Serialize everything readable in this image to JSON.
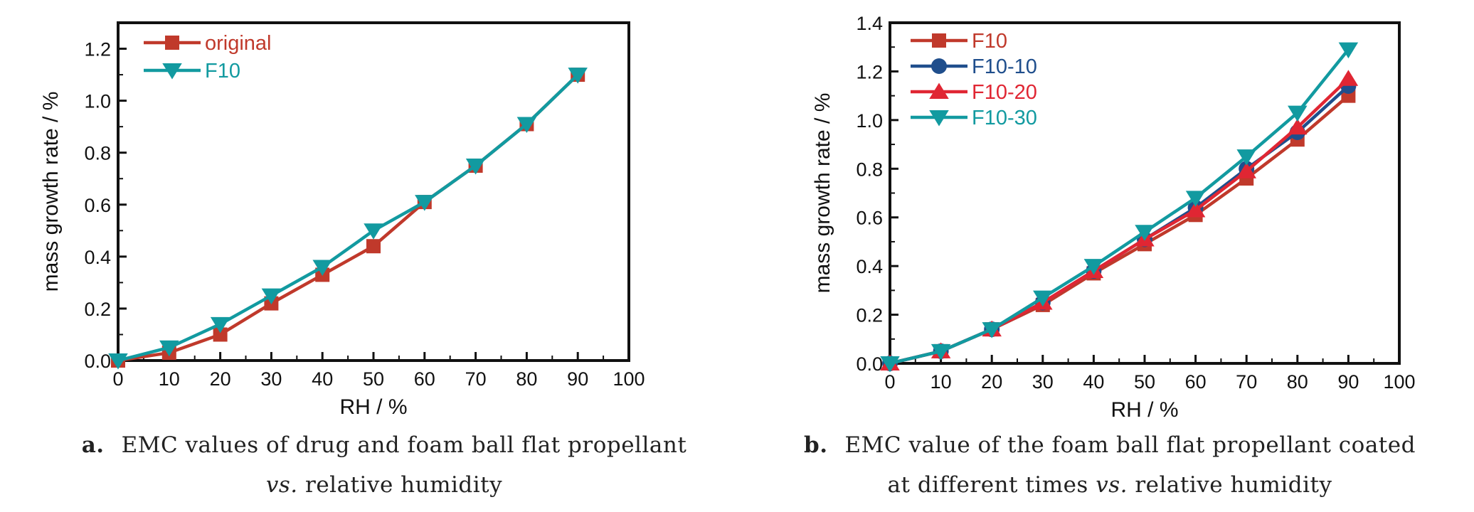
{
  "colors": {
    "red": "#c0392b",
    "blue": "#1f4e8c",
    "bright_red": "#e02633",
    "teal": "#129aa0",
    "axis": "#111111"
  },
  "chart_data": [
    {
      "type": "line",
      "caption": {
        "letter": "a.",
        "line1": "EMC values of drug and foam ball flat propellant",
        "vs": "vs.",
        "line2_rest": " relative humidity"
      },
      "xlabel": "RH / %",
      "ylabel": "mass growth rate / %",
      "xlim": [
        0,
        100
      ],
      "ylim": [
        0,
        1.3
      ],
      "xticks": [
        "0",
        "10",
        "20",
        "30",
        "40",
        "50",
        "60",
        "70",
        "80",
        "90",
        "100"
      ],
      "yticks": [
        "0.0",
        "0.2",
        "0.4",
        "0.6",
        "0.8",
        "1.0",
        "1.2"
      ],
      "legend_position": "top-left",
      "series": [
        {
          "name": "original",
          "marker": "square",
          "color": "#c0392b",
          "x": [
            0,
            10,
            20,
            30,
            40,
            50,
            60,
            70,
            80,
            90
          ],
          "y": [
            0.0,
            0.03,
            0.1,
            0.22,
            0.33,
            0.44,
            0.61,
            0.75,
            0.91,
            1.1
          ]
        },
        {
          "name": "F10",
          "marker": "triangle-down",
          "color": "#129aa0",
          "x": [
            0,
            10,
            20,
            30,
            40,
            50,
            60,
            70,
            80,
            90
          ],
          "y": [
            0.0,
            0.05,
            0.14,
            0.25,
            0.36,
            0.5,
            0.61,
            0.75,
            0.91,
            1.1
          ]
        }
      ]
    },
    {
      "type": "line",
      "caption": {
        "letter": "b.",
        "line1": "EMC value of the foam ball flat propellant coated",
        "line2_pre": "at different times ",
        "vs": "vs.",
        "line2_rest": " relative humidity"
      },
      "xlabel": "RH / %",
      "ylabel": "mass growth rate / %",
      "xlim": [
        0,
        100
      ],
      "ylim": [
        0,
        1.4
      ],
      "xticks": [
        "0",
        "10",
        "20",
        "30",
        "40",
        "50",
        "60",
        "70",
        "80",
        "90",
        "100"
      ],
      "yticks": [
        "0.0",
        "0.2",
        "0.4",
        "0.6",
        "0.8",
        "1.0",
        "1.2",
        "1.4"
      ],
      "legend_position": "top-left",
      "series": [
        {
          "name": "F10",
          "marker": "square",
          "color": "#c0392b",
          "x": [
            0,
            10,
            20,
            30,
            40,
            50,
            60,
            70,
            80,
            90
          ],
          "y": [
            0.0,
            0.05,
            0.14,
            0.24,
            0.37,
            0.49,
            0.61,
            0.76,
            0.92,
            1.1
          ]
        },
        {
          "name": "F10-10",
          "marker": "circle",
          "color": "#1f4e8c",
          "x": [
            0,
            10,
            20,
            30,
            40,
            50,
            60,
            70,
            80,
            90
          ],
          "y": [
            0.0,
            0.05,
            0.14,
            0.25,
            0.38,
            0.51,
            0.64,
            0.8,
            0.95,
            1.14
          ]
        },
        {
          "name": "F10-20",
          "marker": "triangle-up",
          "color": "#e02633",
          "x": [
            0,
            10,
            20,
            30,
            40,
            50,
            60,
            70,
            80,
            90
          ],
          "y": [
            0.0,
            0.05,
            0.14,
            0.25,
            0.38,
            0.51,
            0.63,
            0.79,
            0.97,
            1.17
          ]
        },
        {
          "name": "F10-30",
          "marker": "triangle-down",
          "color": "#129aa0",
          "x": [
            0,
            10,
            20,
            30,
            40,
            50,
            60,
            70,
            80,
            90
          ],
          "y": [
            0.0,
            0.05,
            0.14,
            0.27,
            0.4,
            0.54,
            0.68,
            0.85,
            1.03,
            1.29
          ]
        }
      ]
    }
  ]
}
